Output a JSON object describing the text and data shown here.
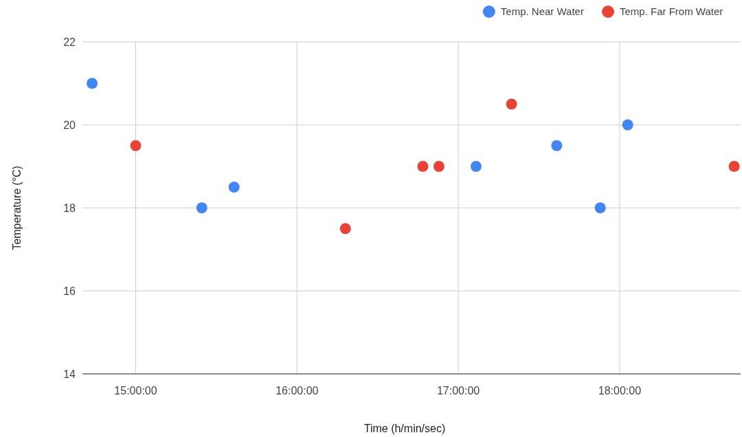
{
  "chart_data": {
    "type": "scatter",
    "xlabel": "Time (h/min/sec)",
    "ylabel": "Temperature (°C)",
    "series": [
      {
        "name": "Temp. Near Water",
        "color": "#4285f4",
        "x": [
          14.73,
          15.41,
          15.61,
          17.11,
          17.61,
          17.88,
          18.05
        ],
        "values": [
          21,
          18,
          18.5,
          19,
          19.5,
          18,
          20
        ]
      },
      {
        "name": "Temp. Far From Water",
        "color": "#ea4335",
        "x": [
          15.0,
          16.3,
          16.78,
          16.88,
          17.33,
          18.71
        ],
        "values": [
          19.5,
          17.5,
          19,
          19,
          20.5,
          19
        ]
      }
    ],
    "xlim": [
      14.67,
      18.75
    ],
    "xticks": [
      {
        "value": 15,
        "label": "15:00:00"
      },
      {
        "value": 16,
        "label": "16:00:00"
      },
      {
        "value": 17,
        "label": "17:00:00"
      },
      {
        "value": 18,
        "label": "18:00:00"
      }
    ],
    "ylim": [
      14,
      22
    ],
    "yticks": [
      14,
      16,
      18,
      20,
      22
    ],
    "grid": true,
    "legend": "top right",
    "marker": "circle"
  }
}
